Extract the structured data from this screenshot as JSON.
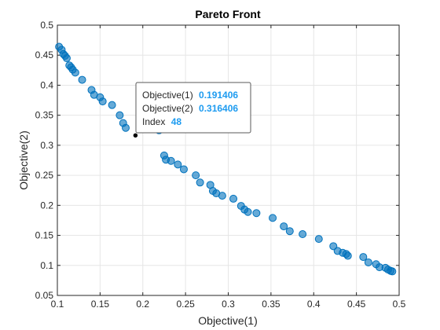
{
  "chart_data": {
    "type": "scatter",
    "title": "Pareto Front",
    "xlabel": "Objective(1)",
    "ylabel": "Objective(2)",
    "xlim": [
      0.1,
      0.5
    ],
    "ylim": [
      0.05,
      0.5
    ],
    "xticks": [
      "0.1",
      "0.15",
      "0.2",
      "0.25",
      "0.3",
      "0.35",
      "0.4",
      "0.45",
      "0.5"
    ],
    "yticks": [
      "0.05",
      "0.1",
      "0.15",
      "0.2",
      "0.25",
      "0.3",
      "0.35",
      "0.4",
      "0.45",
      "0.5"
    ],
    "grid": true,
    "legend": "none",
    "marker_color": "#0072bd",
    "series": [
      {
        "x": [
          0.102,
          0.105,
          0.107,
          0.109,
          0.111,
          0.114,
          0.116,
          0.118,
          0.121,
          0.129,
          0.14,
          0.143,
          0.15,
          0.153,
          0.164,
          0.173,
          0.177,
          0.18,
          0.219,
          0.225,
          0.227,
          0.233,
          0.241,
          0.248,
          0.262,
          0.267,
          0.279,
          0.282,
          0.286,
          0.293,
          0.306,
          0.315,
          0.319,
          0.323,
          0.333,
          0.352,
          0.365,
          0.372,
          0.387,
          0.406,
          0.423,
          0.428,
          0.434,
          0.438,
          0.44,
          0.458,
          0.464,
          0.473,
          0.477,
          0.484,
          0.487,
          0.49,
          0.492
        ],
        "y": [
          0.464,
          0.459,
          0.452,
          0.449,
          0.445,
          0.433,
          0.43,
          0.426,
          0.421,
          0.409,
          0.392,
          0.384,
          0.38,
          0.373,
          0.367,
          0.35,
          0.337,
          0.329,
          0.325,
          0.283,
          0.276,
          0.274,
          0.268,
          0.26,
          0.25,
          0.238,
          0.234,
          0.224,
          0.22,
          0.216,
          0.211,
          0.199,
          0.193,
          0.189,
          0.187,
          0.179,
          0.165,
          0.157,
          0.152,
          0.144,
          0.132,
          0.124,
          0.121,
          0.119,
          0.116,
          0.114,
          0.105,
          0.102,
          0.097,
          0.096,
          0.093,
          0.091,
          0.09
        ]
      }
    ],
    "datatip": {
      "x": 0.191406,
      "y": 0.316406,
      "line1_label": "Objective(1)",
      "line1_value": "0.191406",
      "line2_label": "Objective(2)",
      "line2_value": "0.316406",
      "line3_label": "Index",
      "line3_value": "48"
    }
  }
}
